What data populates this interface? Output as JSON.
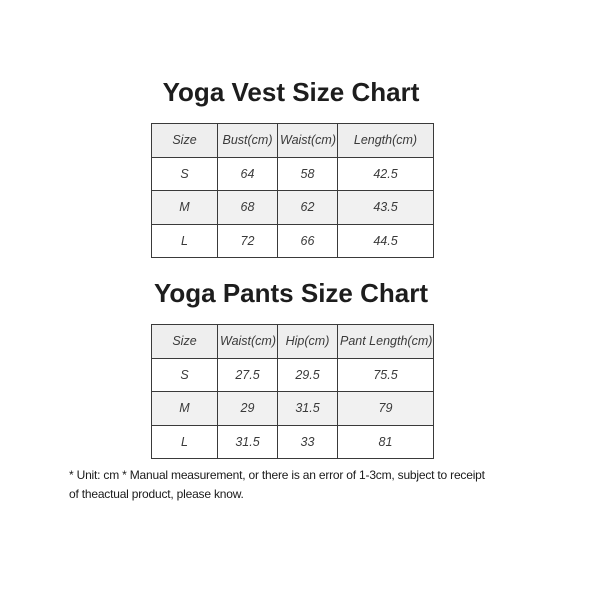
{
  "page": {
    "background": "#ffffff"
  },
  "vest_chart": {
    "title": "Yoga Vest Size Chart",
    "columns": [
      "Size",
      "Bust(cm)",
      "Waist(cm)",
      "Length(cm)"
    ],
    "rows": [
      [
        "S",
        "64",
        "58",
        "42.5"
      ],
      [
        "M",
        "68",
        "62",
        "43.5"
      ],
      [
        "L",
        "72",
        "66",
        "44.5"
      ]
    ]
  },
  "pants_chart": {
    "title": "Yoga Pants Size Chart",
    "columns": [
      "Size",
      "Waist(cm)",
      "Hip(cm)",
      "Pant Length(cm)"
    ],
    "rows": [
      [
        "S",
        "27.5",
        "29.5",
        "75.5"
      ],
      [
        "M",
        "29",
        "31.5",
        "79"
      ],
      [
        "L",
        "31.5",
        "33",
        "81"
      ]
    ]
  },
  "footnote": {
    "lines": [
      "* Unit: cm * Manual measurement, or there is an error of 1-3cm, subject to receipt",
      "of theactual product, please know."
    ]
  },
  "colors": {
    "border": "#3a3a3a",
    "header_row_bg": "#eeeeee",
    "striped_row_bg": "#f1f1f1",
    "title_text": "#1d1d1d",
    "table_text": "#3a3a3a"
  }
}
